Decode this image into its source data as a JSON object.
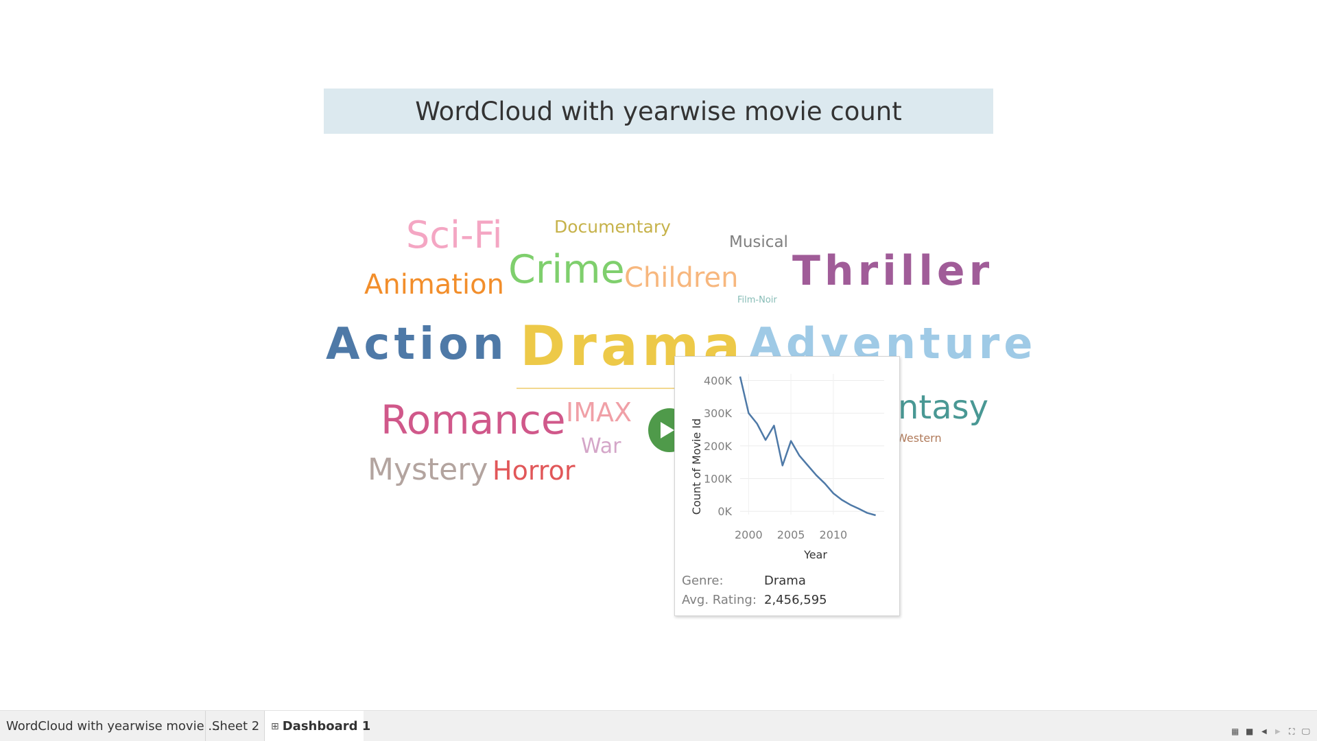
{
  "dashboard": {
    "title": "WordCloud with yearwise movie count"
  },
  "wordcloud": {
    "words": [
      {
        "text": "Sci-Fi",
        "color": "#f4a6c3"
      },
      {
        "text": "Documentary",
        "color": "#c6b24a"
      },
      {
        "text": "Musical",
        "color": "#7f7f7f"
      },
      {
        "text": "Animation",
        "color": "#f28e2b"
      },
      {
        "text": "Crime",
        "color": "#7fcf6d"
      },
      {
        "text": "Children",
        "color": "#f7b77e"
      },
      {
        "text": "Thriller",
        "color": "#a05c98"
      },
      {
        "text": "Film-Noir",
        "color": "#86bcb6"
      },
      {
        "text": "Action",
        "color": "#4e79a7"
      },
      {
        "text": "Drama",
        "color": "#edc948"
      },
      {
        "text": "Adventure",
        "color": "#9fcae6"
      },
      {
        "text": "Romance",
        "color": "#d0588a"
      },
      {
        "text": "IMAX",
        "color": "#f0a0a7"
      },
      {
        "text": "War",
        "color": "#d4a6c8"
      },
      {
        "text": "Mystery",
        "color": "#b3a49f"
      },
      {
        "text": "Horror",
        "color": "#e15759"
      },
      {
        "text": "ntasy",
        "color": "#499894"
      },
      {
        "text": "Western",
        "color": "#b07a5a"
      }
    ]
  },
  "tooltip": {
    "genre_label": "Genre:",
    "genre_value": "Drama",
    "rating_label": "Avg. Rating:",
    "rating_value": "2,456,595",
    "line_color": "#4e79a7"
  },
  "chart_data": {
    "type": "line",
    "title": "",
    "xlabel": "Year",
    "ylabel": "Count of Movie Id",
    "x": [
      1999,
      2000,
      2001,
      2002,
      2003,
      2004,
      2005,
      2006,
      2007,
      2008,
      2009,
      2010,
      2011,
      2012,
      2013,
      2014,
      2015
    ],
    "y": [
      412000,
      300000,
      268000,
      218000,
      262000,
      140000,
      215000,
      170000,
      140000,
      110000,
      85000,
      55000,
      35000,
      20000,
      8000,
      -5000,
      -12000
    ],
    "x_ticks": [
      "2000",
      "2005",
      "2010"
    ],
    "y_ticks": [
      "400K",
      "300K",
      "200K",
      "100K",
      "0K"
    ],
    "xlim": [
      1999,
      2016
    ],
    "ylim": [
      -10000,
      420000
    ],
    "grid": true
  },
  "tabs": [
    {
      "label": "WordCloud with yearwise movie ..."
    },
    {
      "label": "Sheet 2"
    },
    {
      "label": "Dashboard 1",
      "icon": "dashboard-grid-icon"
    }
  ],
  "controls": {
    "icons": [
      "grid-view-icon",
      "stop-icon",
      "previous-icon",
      "next-icon",
      "fullscreen-icon",
      "presentation-icon"
    ]
  }
}
